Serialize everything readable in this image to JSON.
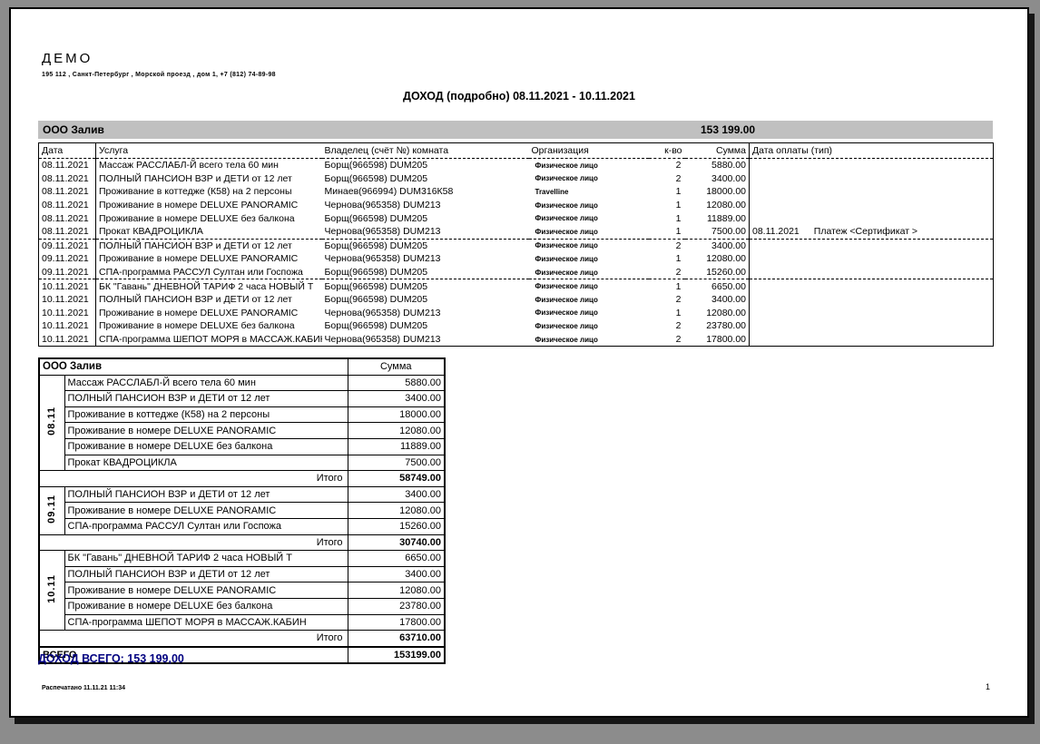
{
  "header": {
    "company_name": "ДЕМО",
    "company_address": "195 112 , Санкт-Петербург , Морской проезд , дом 1, +7 (812) 74-89-98",
    "title": "ДОХОД (подробно)  08.11.2021  - 10.11.2021"
  },
  "group_bar": {
    "name": "ООО Залив",
    "total": "153 199.00"
  },
  "detail_table": {
    "columns": [
      "Дата",
      "Услуга",
      "Владелец (счёт №) комната",
      "Организация",
      "к-во",
      "Сумма",
      "Дата оплаты (тип)"
    ],
    "rows": [
      {
        "date": "08.11.2021",
        "service": "Массаж РАССЛАБЛ-Й всего тела 60 мин",
        "owner": "Борщ(966598) DUM205",
        "org": "Физическое лицо",
        "qty": "2",
        "sum": "5880.00"
      },
      {
        "date": "08.11.2021",
        "service": "ПОЛНЫЙ ПАНСИОН ВЗР и ДЕТИ от 12 лет",
        "owner": "Борщ(966598) DUM205",
        "org": "Физическое лицо",
        "qty": "2",
        "sum": "3400.00"
      },
      {
        "date": "08.11.2021",
        "service": "Проживание в коттедже (К58) на 2 персоны",
        "owner": "Минаев(966994) DUM316К58",
        "org": "Travelline",
        "qty": "1",
        "sum": "18000.00"
      },
      {
        "date": "08.11.2021",
        "service": "Проживание в номере DELUXE PANORAMIC",
        "owner": "Чернова(965358) DUM213",
        "org": "Физическое лицо",
        "qty": "1",
        "sum": "12080.00"
      },
      {
        "date": "08.11.2021",
        "service": "Проживание в номере DELUXE без балкона",
        "owner": "Борщ(966598) DUM205",
        "org": "Физическое лицо",
        "qty": "1",
        "sum": "11889.00"
      },
      {
        "date": "08.11.2021",
        "service": "Прокат КВАДРОЦИКЛА",
        "owner": "Чернова(965358) DUM213",
        "org": "Физическое лицо",
        "qty": "1",
        "sum": "7500.00",
        "sep_after": true,
        "payment": {
          "date": "08.11.2021",
          "label": "Платеж <Сертификат >"
        }
      },
      {
        "date": "09.11.2021",
        "service": "ПОЛНЫЙ ПАНСИОН ВЗР и ДЕТИ от 12 лет",
        "owner": "Борщ(966598) DUM205",
        "org": "Физическое лицо",
        "qty": "2",
        "sum": "3400.00"
      },
      {
        "date": "09.11.2021",
        "service": "Проживание в номере DELUXE PANORAMIC",
        "owner": "Чернова(965358) DUM213",
        "org": "Физическое лицо",
        "qty": "1",
        "sum": "12080.00"
      },
      {
        "date": "09.11.2021",
        "service": "СПА-программа  РАССУЛ Султан или Госпожа",
        "owner": "Борщ(966598) DUM205",
        "org": "Физическое лицо",
        "qty": "2",
        "sum": "15260.00",
        "sep_after": true
      },
      {
        "date": "10.11.2021",
        "service": "БК \"Гавань\" ДНЕВНОЙ ТАРИФ 2 часа НОВЫЙ Т",
        "owner": "Борщ(966598) DUM205",
        "org": "Физическое лицо",
        "qty": "1",
        "sum": "6650.00"
      },
      {
        "date": "10.11.2021",
        "service": "ПОЛНЫЙ ПАНСИОН ВЗР и ДЕТИ от 12 лет",
        "owner": "Борщ(966598) DUM205",
        "org": "Физическое лицо",
        "qty": "2",
        "sum": "3400.00"
      },
      {
        "date": "10.11.2021",
        "service": "Проживание в номере DELUXE PANORAMIC",
        "owner": "Чернова(965358) DUM213",
        "org": "Физическое лицо",
        "qty": "1",
        "sum": "12080.00"
      },
      {
        "date": "10.11.2021",
        "service": "Проживание в номере DELUXE без балкона",
        "owner": "Борщ(966598) DUM205",
        "org": "Физическое лицо",
        "qty": "2",
        "sum": "23780.00"
      },
      {
        "date": "10.11.2021",
        "service": "СПА-программа ШЕПОТ МОРЯ  в МАССАЖ.КАБИН",
        "owner": "Чернова(965358) DUM213",
        "org": "Физическое лицо",
        "qty": "2",
        "sum": "17800.00"
      }
    ]
  },
  "summary_table": {
    "header": {
      "company": "ООО Залив",
      "sum_label": "Сумма"
    },
    "groups": [
      {
        "date_label": "08.11",
        "rows": [
          {
            "service": "Массаж РАССЛАБЛ-Й всего тела 60 мин",
            "sum": "5880.00"
          },
          {
            "service": "ПОЛНЫЙ ПАНСИОН ВЗР и ДЕТИ от 12 лет",
            "sum": "3400.00"
          },
          {
            "service": "Проживание в коттедже (К58) на 2 персоны",
            "sum": "18000.00"
          },
          {
            "service": "Проживание в номере DELUXE PANORAMIC",
            "sum": "12080.00"
          },
          {
            "service": "Проживание в номере DELUXE без балкона",
            "sum": "11889.00"
          },
          {
            "service": "Прокат КВАДРОЦИКЛА",
            "sum": "7500.00"
          }
        ],
        "total_label": "Итого",
        "total": "58749.00"
      },
      {
        "date_label": "09.11",
        "rows": [
          {
            "service": "ПОЛНЫЙ ПАНСИОН ВЗР и ДЕТИ от 12 лет",
            "sum": "3400.00"
          },
          {
            "service": "Проживание в номере DELUXE PANORAMIC",
            "sum": "12080.00"
          },
          {
            "service": "СПА-программа  РАССУЛ Султан или Госпожа",
            "sum": "15260.00"
          }
        ],
        "total_label": "Итого",
        "total": "30740.00"
      },
      {
        "date_label": "10.11",
        "rows": [
          {
            "service": "БК \"Гавань\" ДНЕВНОЙ ТАРИФ 2 часа НОВЫЙ Т",
            "sum": "6650.00"
          },
          {
            "service": "ПОЛНЫЙ ПАНСИОН ВЗР и ДЕТИ от 12 лет",
            "sum": "3400.00"
          },
          {
            "service": "Проживание в номере DELUXE PANORAMIC",
            "sum": "12080.00"
          },
          {
            "service": "Проживание в номере DELUXE без балкона",
            "sum": "23780.00"
          },
          {
            "service": "СПА-программа ШЕПОТ МОРЯ  в МАССАЖ.КАБИН",
            "sum": "17800.00"
          }
        ],
        "total_label": "Итого",
        "total": "63710.00"
      }
    ],
    "grand_total_label": "ВСЕГО",
    "grand_total": "153199.00",
    "income_total_line": "ДОХОД ВСЕГО: 153  199,00"
  },
  "footer": {
    "printed": "Распечатано 11.11.21 11:34",
    "page_number": "1"
  },
  "colors": {
    "band_bg": "#c0c0c0",
    "income_text": "#000080",
    "page_bg": "#ffffff",
    "backdrop": "#8c8c8c"
  }
}
